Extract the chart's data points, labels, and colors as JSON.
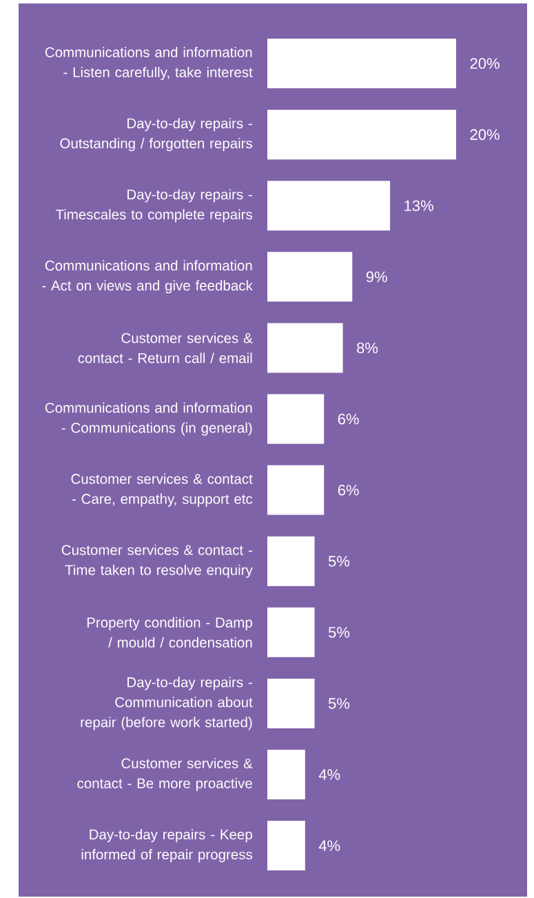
{
  "chart_data": {
    "type": "bar",
    "orientation": "horizontal",
    "color": "#ffffff",
    "categories": [
      "Communications and information - Listen carefully, take interest",
      "Day-to-day repairs - Outstanding / forgotten repairs",
      "Day-to-day repairs - Timescales to complete repairs",
      "Communications and information - Act on views and give feedback",
      "Customer services & contact - Return call / email",
      "Communications and information - Communications (in general)",
      "Customer services & contact - Care, empathy, support etc",
      "Customer services & contact - Time taken to resolve enquiry",
      "Property condition - Damp / mould / condensation",
      "Day-to-day repairs - Communication about repair (before work started)",
      "Customer services & contact - Be more proactive",
      "Day-to-day repairs - Keep informed of repair progress"
    ],
    "values": [
      20,
      20,
      13,
      9,
      8,
      6,
      6,
      5,
      5,
      5,
      4,
      4
    ],
    "value_labels": [
      "20%",
      "20%",
      "13%",
      "9%",
      "8%",
      "6%",
      "6%",
      "5%",
      "5%",
      "5%",
      "4%",
      "4%"
    ]
  }
}
